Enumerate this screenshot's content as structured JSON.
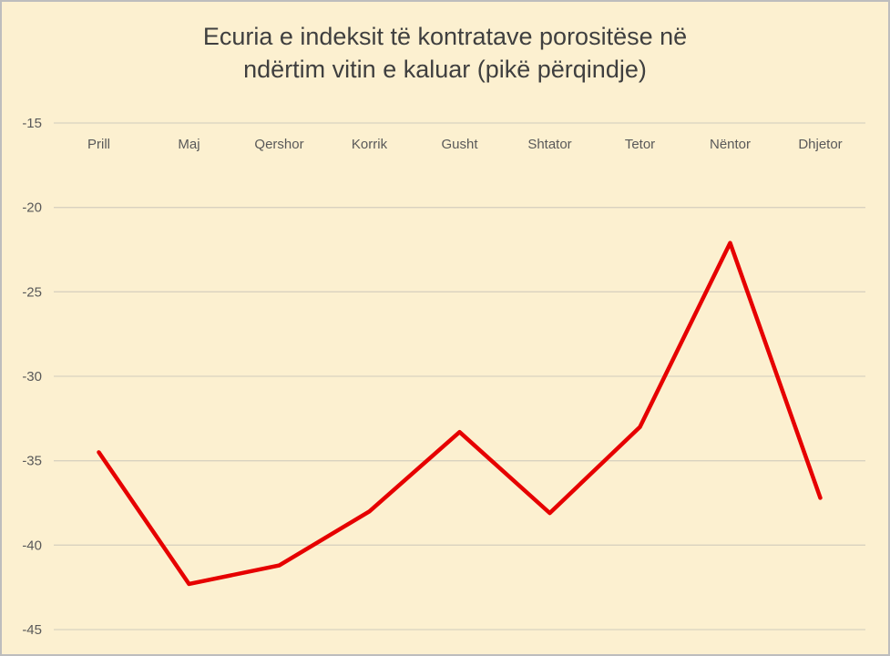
{
  "chart_data": {
    "type": "line",
    "title": "Ecuria e indeksit të kontratave porositëse në ndërtim vitin e kaluar (pikë përqindje)",
    "title_lines": [
      "Ecuria e indeksit të kontratave porositëse në",
      "ndërtim vitin e kaluar (pikë përqindje)"
    ],
    "categories": [
      "Prill",
      "Maj",
      "Qershor",
      "Korrik",
      "Gusht",
      "Shtator",
      "Tetor",
      "Nëntor",
      "Dhjetor"
    ],
    "values": [
      -34.5,
      -42.3,
      -41.2,
      -38.0,
      -33.3,
      -38.1,
      -33.0,
      -22.1,
      -37.2
    ],
    "ylim": [
      -45,
      -15
    ],
    "yticks": [
      -15,
      -20,
      -25,
      -30,
      -35,
      -40,
      -45
    ],
    "grid": "horizontal",
    "legend": "none",
    "line_color": "#e60000",
    "background_color": "#fcf0d0",
    "border_color": "#bdbdbd",
    "gridline_color": "#d9d2bf",
    "title_color": "#3f3f3f",
    "axis_text_color": "#595959"
  }
}
